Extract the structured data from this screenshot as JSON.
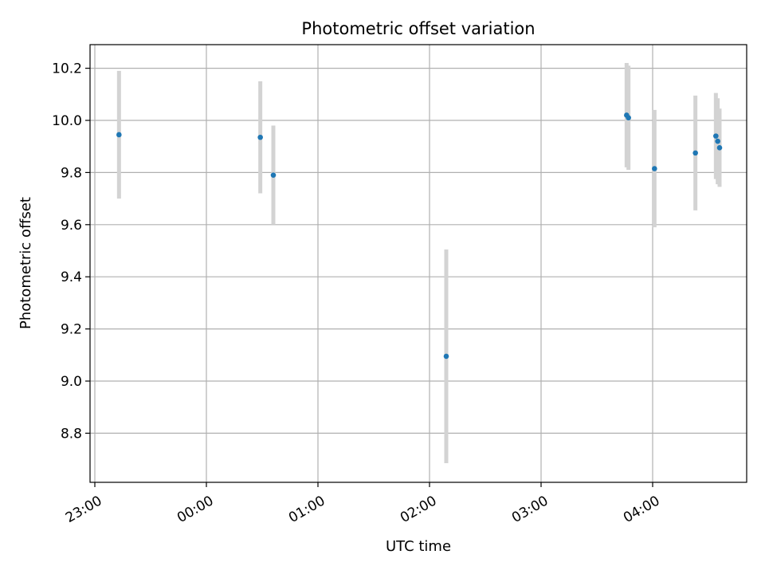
{
  "chart_data": {
    "type": "scatter",
    "title": "Photometric offset variation",
    "xlabel": "UTC time",
    "ylabel": "Photometric offset",
    "grid": true,
    "legend": "none",
    "x_ticks": [
      "23:00",
      "00:00",
      "01:00",
      "02:00",
      "03:00",
      "04:00"
    ],
    "y_ticks": [
      "8.8",
      "9.0",
      "9.2",
      "9.4",
      "9.6",
      "9.8",
      "10.0",
      "10.2"
    ],
    "colors": {
      "point": "#1f77b4",
      "errorbar": "#d3d3d3",
      "grid": "#b0b0b0"
    },
    "series": [
      {
        "x": [
          "23:13",
          "00:29",
          "00:36",
          "02:09",
          "03:46",
          "03:47",
          "04:01",
          "04:23",
          "04:34",
          "04:35",
          "04:36"
        ],
        "y": [
          9.945,
          9.935,
          9.79,
          9.095,
          10.02,
          10.01,
          9.815,
          9.875,
          9.94,
          9.92,
          9.895
        ],
        "yerr": [
          0.245,
          0.215,
          0.19,
          0.41,
          0.2,
          0.2,
          0.225,
          0.22,
          0.165,
          0.165,
          0.15
        ]
      }
    ]
  }
}
